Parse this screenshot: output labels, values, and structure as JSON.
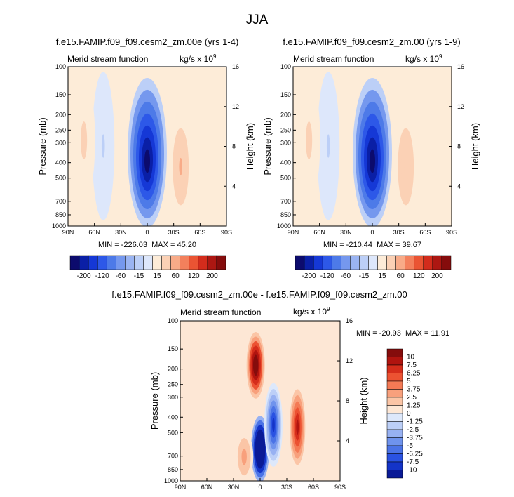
{
  "figure": {
    "season": "JJA"
  },
  "panels": [
    {
      "title": "f.e15.FAMIP.f09_f09.cesm2_zm.00e (yrs 1-4)",
      "left_label": "Merid stream function",
      "units_base": "kg/s x 10",
      "units_exp": "9",
      "stats": "MIN = -226.03  MAX = 45.20"
    },
    {
      "title": "f.e15.FAMIP.f09_f09.cesm2_zm.00 (yrs 1-9)",
      "left_label": "Merid stream function",
      "units_base": "kg/s x 10",
      "units_exp": "9",
      "stats": "MIN = -210.44  MAX = 39.67"
    },
    {
      "title": "f.e15.FAMIP.f09_f09.cesm2_zm.00e - f.e15.FAMIP.f09_f09.cesm2_zm.00",
      "left_label": "Merid stream function",
      "units_base": "kg/s x 10",
      "units_exp": "9",
      "stats": "MIN = -20.93  MAX = 11.91"
    }
  ],
  "chart_data": [
    {
      "type": "heatmap",
      "panel": 0,
      "xlabel": "",
      "ylabel": "Pressure (mb)",
      "ylabel_right": "Height (km)",
      "x_ticks": [
        "90N",
        "60N",
        "30N",
        "0",
        "30S",
        "60S",
        "90S"
      ],
      "y_ticks": [
        "100",
        "150",
        "200",
        "250",
        "300",
        "400",
        "500",
        "700",
        "850",
        "1000"
      ],
      "y2_ticks": [
        "16",
        "12",
        "8",
        "4"
      ],
      "xlim": [
        90,
        -90
      ],
      "ylim": [
        1000,
        100
      ],
      "yscale": "log",
      "min": -226.03,
      "max": 45.2,
      "features": [
        {
          "lat": 0,
          "p_top": 120,
          "p_bot": 1000,
          "value": -226
        },
        {
          "lat": -38,
          "p_top": 200,
          "p_bot": 900,
          "value": 45
        },
        {
          "lat": 50,
          "p_top": 110,
          "p_bot": 900,
          "value": -15
        },
        {
          "lat": 72,
          "p_top": 120,
          "p_bot": 700,
          "value": 20
        }
      ]
    },
    {
      "type": "heatmap",
      "panel": 1,
      "xlabel": "",
      "ylabel": "Pressure (mb)",
      "ylabel_right": "Height (km)",
      "x_ticks": [
        "90N",
        "60N",
        "30N",
        "0",
        "30S",
        "60S",
        "90S"
      ],
      "y_ticks": [
        "100",
        "150",
        "200",
        "250",
        "300",
        "400",
        "500",
        "700",
        "850",
        "1000"
      ],
      "y2_ticks": [
        "16",
        "12",
        "8",
        "4"
      ],
      "xlim": [
        90,
        -90
      ],
      "ylim": [
        1000,
        100
      ],
      "yscale": "log",
      "min": -210.44,
      "max": 39.67,
      "features": [
        {
          "lat": 0,
          "p_top": 120,
          "p_bot": 1000,
          "value": -210
        },
        {
          "lat": -38,
          "p_top": 200,
          "p_bot": 900,
          "value": 40
        },
        {
          "lat": 50,
          "p_top": 110,
          "p_bot": 900,
          "value": -15
        },
        {
          "lat": 72,
          "p_top": 120,
          "p_bot": 700,
          "value": 18
        }
      ]
    },
    {
      "type": "heatmap",
      "panel": 2,
      "xlabel": "",
      "ylabel": "Pressure (mb)",
      "ylabel_right": "Height (km)",
      "x_ticks": [
        "90N",
        "60N",
        "30N",
        "0",
        "30S",
        "60S",
        "90S"
      ],
      "y_ticks": [
        "100",
        "150",
        "200",
        "250",
        "300",
        "400",
        "500",
        "700",
        "850",
        "1000"
      ],
      "y2_ticks": [
        "16",
        "12",
        "8",
        "4"
      ],
      "xlim": [
        90,
        -90
      ],
      "ylim": [
        1000,
        100
      ],
      "yscale": "log",
      "min": -20.93,
      "max": 11.91,
      "features": [
        {
          "lat": 5,
          "p_top": 120,
          "p_bot": 300,
          "value": 11.9
        },
        {
          "lat": 0,
          "p_top": 400,
          "p_bot": 1000,
          "value": -20.9
        },
        {
          "lat": -15,
          "p_top": 250,
          "p_bot": 800,
          "value": -8
        },
        {
          "lat": -42,
          "p_top": 250,
          "p_bot": 850,
          "value": 7.5
        },
        {
          "lat": 18,
          "p_top": 500,
          "p_bot": 1000,
          "value": 3
        }
      ]
    }
  ],
  "colorbars": [
    {
      "panel": "top",
      "levels": [
        "-200",
        "-120",
        "-60",
        "-15",
        "15",
        "60",
        "120",
        "200"
      ],
      "colors": [
        "#0c0b6d",
        "#0a1fa6",
        "#1538d6",
        "#2d58e8",
        "#4d7ae8",
        "#7598ee",
        "#9ab4f2",
        "#bccff7",
        "#dde7fb",
        "#fdecd8",
        "#fbd1b5",
        "#f8ab88",
        "#f3805c",
        "#ea5433",
        "#d32c1c",
        "#ad1712",
        "#850c0c"
      ]
    },
    {
      "panel": "diff",
      "levels": [
        "10",
        "7.5",
        "6.25",
        "5",
        "3.75",
        "2.5",
        "1.25",
        "0",
        "-1.25",
        "-2.5",
        "-3.75",
        "-5",
        "-6.25",
        "-7.5",
        "-10"
      ],
      "colors": [
        "#850c0c",
        "#b1140f",
        "#d52d1b",
        "#ec5232",
        "#f47a55",
        "#f8a07c",
        "#fbc5a6",
        "#fde7d5",
        "#dde8fb",
        "#bccff7",
        "#97b1f2",
        "#6f93ed",
        "#4b73e6",
        "#2a52e2",
        "#1434c8",
        "#0a1a96"
      ]
    }
  ]
}
